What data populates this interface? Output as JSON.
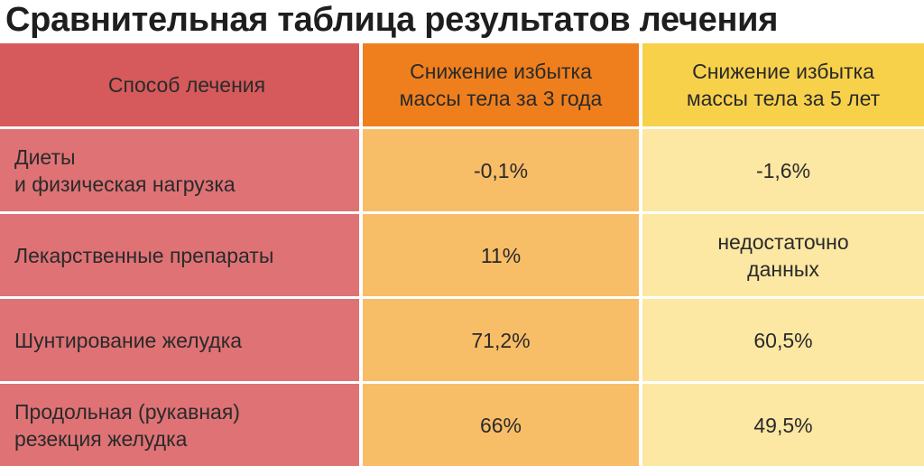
{
  "title": "Сравнительная таблица результатов лечения",
  "table": {
    "headers": [
      "Способ лечения",
      "Снижение избытка\nмассы тела за 3 года",
      "Снижение избытка\nмассы тела за 5 лет"
    ],
    "rows": [
      [
        "Диеты\nи физическая нагрузка",
        "-0,1%",
        "-1,6%"
      ],
      [
        "Лекарственные препараты",
        "11%",
        "недостаточно\nданных"
      ],
      [
        "Шунтирование желудка",
        "71,2%",
        "60,5%"
      ],
      [
        "Продольная (рукавная)\nрезекция желудка",
        "66%",
        "49,5%"
      ]
    ]
  },
  "colors": {
    "header": [
      "#d65a5b",
      "#ef7f1d",
      "#f8d14b"
    ],
    "body": [
      "#df7275",
      "#f8bd67",
      "#fce7a3"
    ]
  }
}
